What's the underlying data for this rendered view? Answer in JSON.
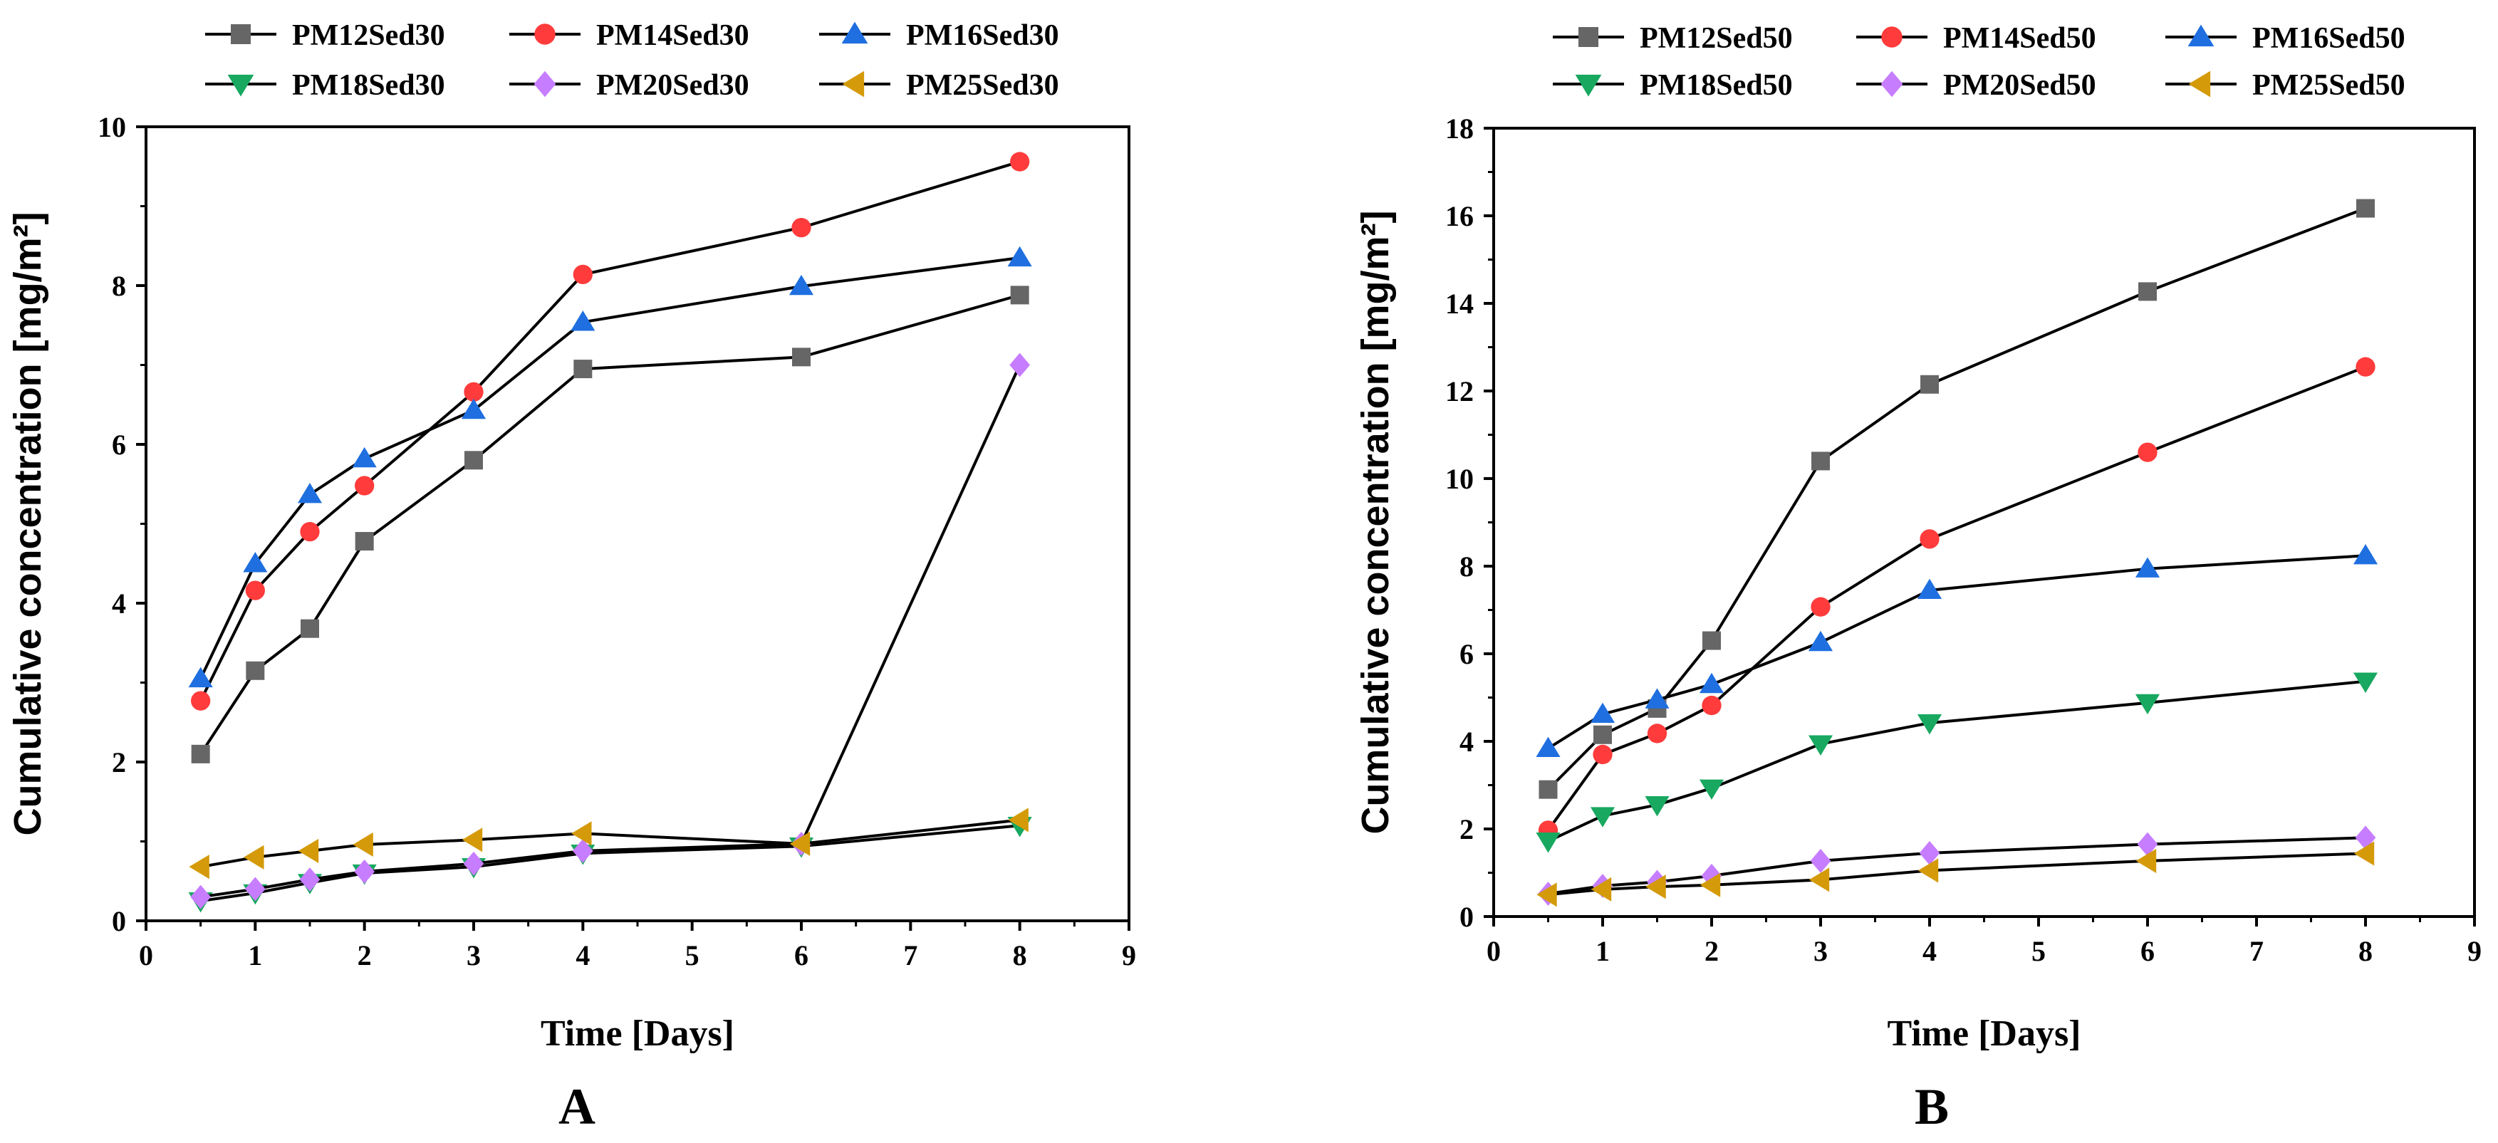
{
  "chart_data": [
    {
      "type": "line",
      "panel_label": "A",
      "xlabel": "Time [Days]",
      "ylabel": "Cumulative concentration [mg/m²]",
      "xlim": [
        0,
        9
      ],
      "ylim": [
        0,
        10
      ],
      "xticks": [
        0,
        1,
        2,
        3,
        4,
        5,
        6,
        7,
        8,
        9
      ],
      "yticks": [
        0,
        2,
        4,
        6,
        8,
        10
      ],
      "grid": false,
      "legend_position": "top",
      "x": [
        0.5,
        1,
        1.5,
        2,
        3,
        4,
        6,
        8
      ],
      "series": [
        {
          "name": "PM12Sed30",
          "marker": "square",
          "color": "#666666",
          "values": [
            2.1,
            3.15,
            3.68,
            4.78,
            5.8,
            6.95,
            7.1,
            7.88
          ]
        },
        {
          "name": "PM14Sed30",
          "marker": "circle",
          "color": "#ff3b3b",
          "values": [
            2.77,
            4.16,
            4.9,
            5.48,
            6.66,
            8.14,
            8.73,
            9.56
          ]
        },
        {
          "name": "PM16Sed30",
          "marker": "triangle-up",
          "color": "#1f6fe0",
          "values": [
            3.05,
            4.5,
            5.37,
            5.82,
            6.43,
            7.54,
            7.99,
            8.35
          ]
        },
        {
          "name": "PM18Sed30",
          "marker": "triangle-down",
          "color": "#18a860",
          "values": [
            0.25,
            0.35,
            0.48,
            0.6,
            0.68,
            0.85,
            0.94,
            1.2
          ]
        },
        {
          "name": "PM20Sed30",
          "marker": "diamond",
          "color": "#c77dff",
          "values": [
            0.3,
            0.4,
            0.52,
            0.62,
            0.72,
            0.88,
            0.97,
            7.0
          ]
        },
        {
          "name": "PM25Sed30",
          "marker": "triangle-left",
          "color": "#d49a0a",
          "values": [
            0.68,
            0.8,
            0.88,
            0.96,
            1.02,
            1.1,
            0.97,
            1.27
          ]
        }
      ]
    },
    {
      "type": "line",
      "panel_label": "B",
      "xlabel": "Time [Days]",
      "ylabel": "Cumulative concentration [mg/m²]",
      "xlim": [
        0,
        9
      ],
      "ylim": [
        0,
        18
      ],
      "xticks": [
        0,
        1,
        2,
        3,
        4,
        5,
        6,
        7,
        8,
        9
      ],
      "yticks": [
        0,
        2,
        4,
        6,
        8,
        10,
        12,
        14,
        16,
        18
      ],
      "grid": false,
      "legend_position": "top",
      "x": [
        0.5,
        1,
        1.5,
        2,
        3,
        4,
        6,
        8
      ],
      "series": [
        {
          "name": "PM12Sed50",
          "marker": "square",
          "color": "#666666",
          "values": [
            2.9,
            4.15,
            4.75,
            6.3,
            10.4,
            12.15,
            14.27,
            16.17
          ]
        },
        {
          "name": "PM14Sed50",
          "marker": "circle",
          "color": "#ff3b3b",
          "values": [
            1.97,
            3.7,
            4.18,
            4.82,
            7.07,
            8.62,
            10.6,
            12.55
          ]
        },
        {
          "name": "PM16Sed50",
          "marker": "triangle-up",
          "color": "#1f6fe0",
          "values": [
            3.84,
            4.62,
            4.95,
            5.3,
            6.26,
            7.45,
            7.94,
            8.24
          ]
        },
        {
          "name": "PM18Sed50",
          "marker": "triangle-down",
          "color": "#18a860",
          "values": [
            1.72,
            2.3,
            2.55,
            2.93,
            3.94,
            4.42,
            4.88,
            5.37
          ]
        },
        {
          "name": "PM20Sed50",
          "marker": "diamond",
          "color": "#c77dff",
          "values": [
            0.52,
            0.7,
            0.79,
            0.93,
            1.27,
            1.45,
            1.65,
            1.8
          ]
        },
        {
          "name": "PM25Sed50",
          "marker": "triangle-left",
          "color": "#d49a0a",
          "values": [
            0.5,
            0.62,
            0.68,
            0.72,
            0.84,
            1.05,
            1.27,
            1.44
          ]
        }
      ]
    }
  ]
}
